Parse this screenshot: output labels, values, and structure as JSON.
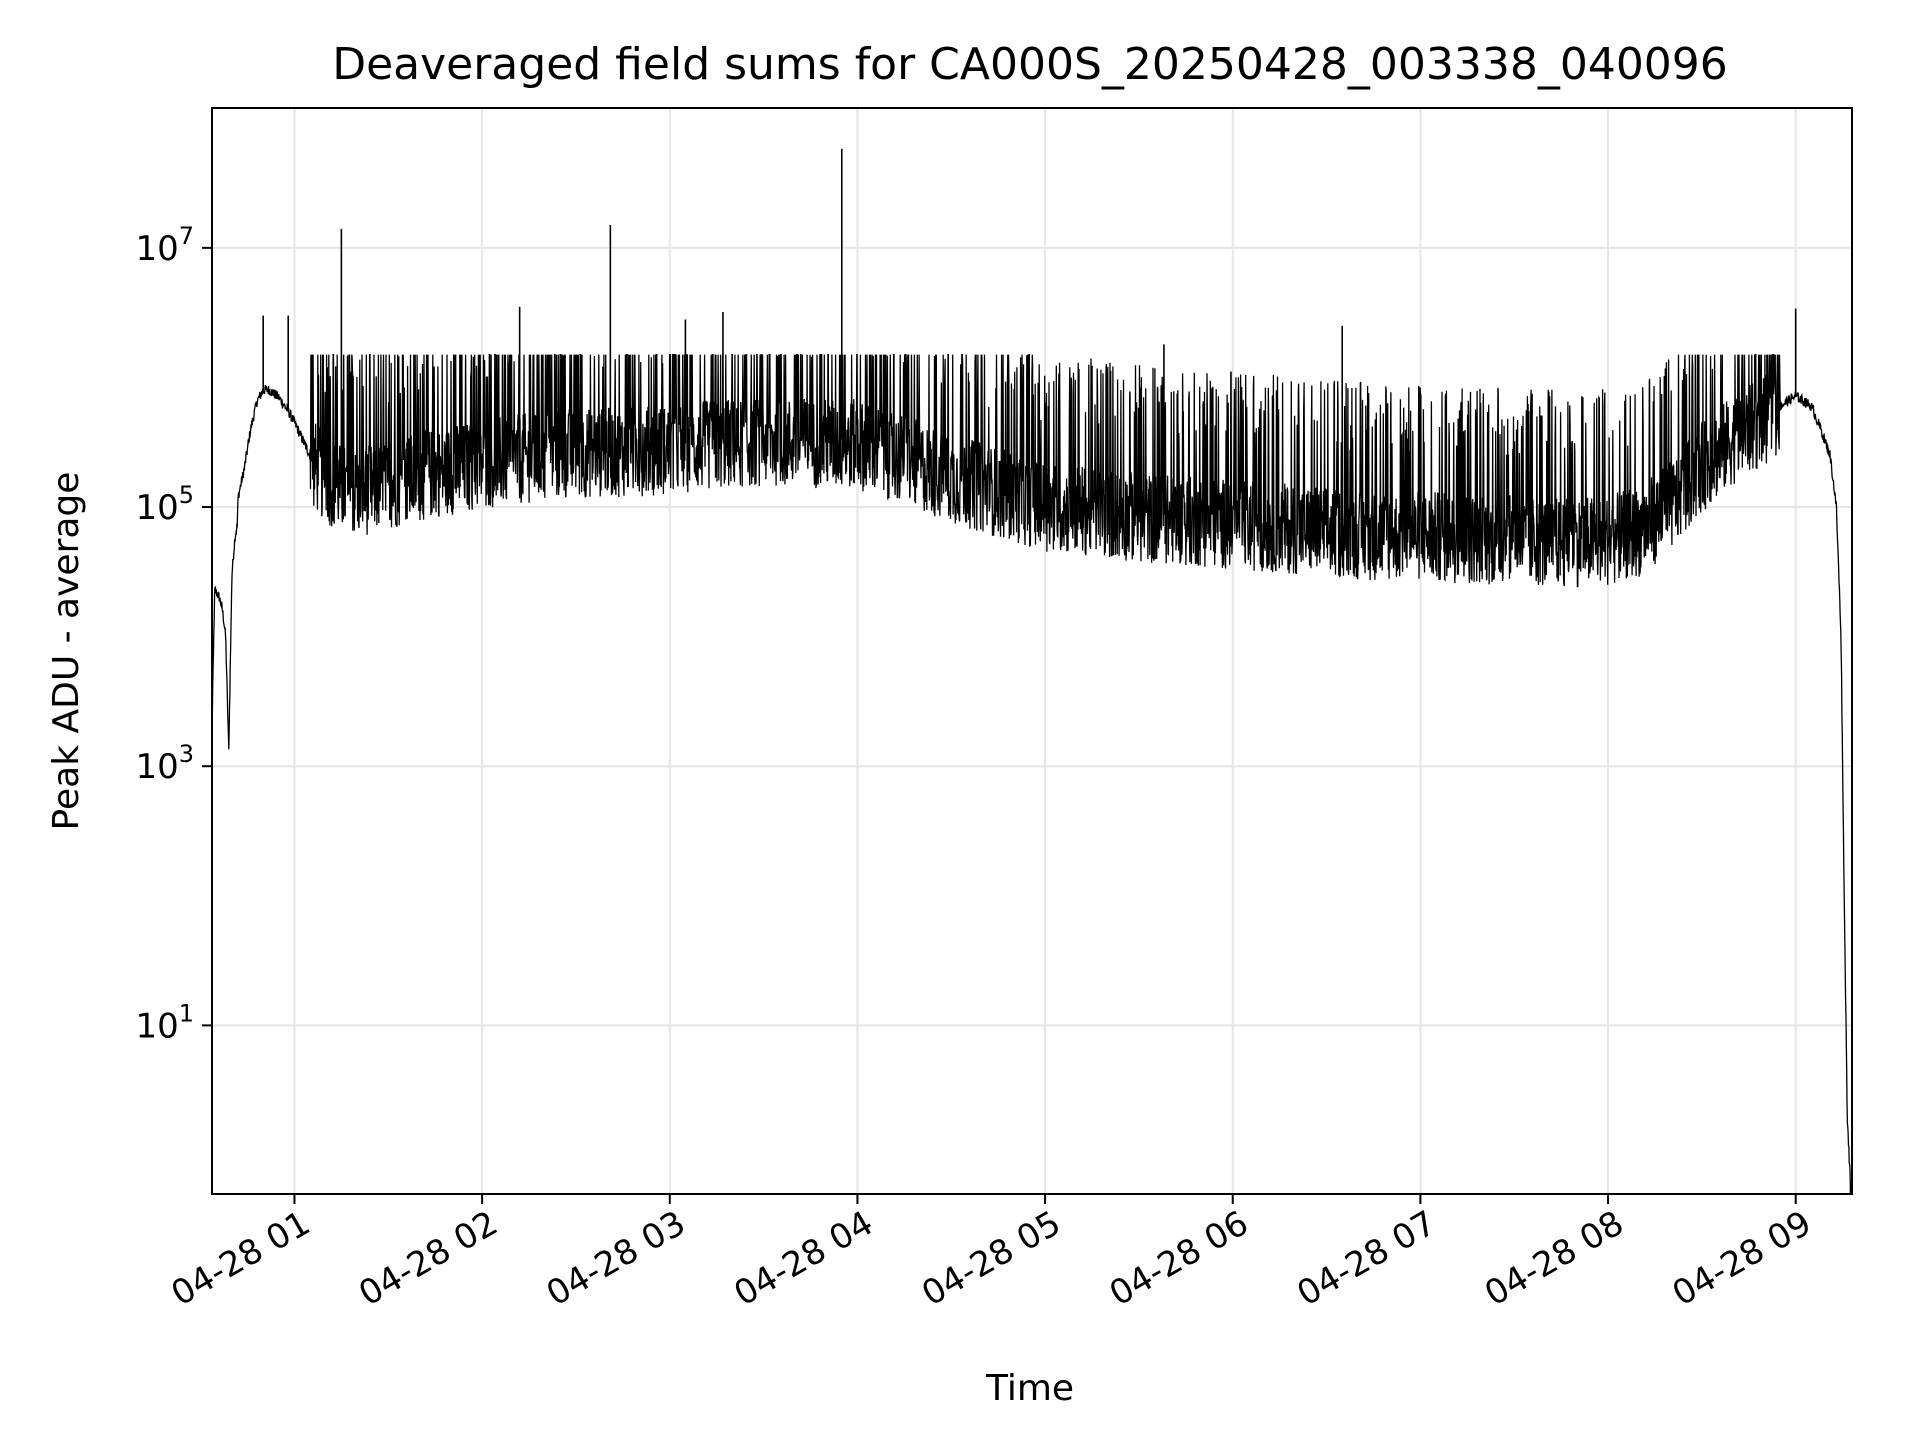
{
  "chart_data": {
    "type": "line",
    "title": "Deaveraged field sums for CA000S_20250428_003338_040096",
    "xlabel": "Time",
    "ylabel": "Peak ADU - average",
    "yscale": "log",
    "ylim": [
      0.5,
      120000000
    ],
    "xlim": [
      "2025-04-28 00:33:38",
      "2025-04-28 09:18:00"
    ],
    "grid": true,
    "line_color": "#000000",
    "grid_color": "#e6e6e6",
    "x_ticks": [
      {
        "value": "2025-04-28 01:00",
        "label": "04-28 01"
      },
      {
        "value": "2025-04-28 02:00",
        "label": "04-28 02"
      },
      {
        "value": "2025-04-28 03:00",
        "label": "04-28 03"
      },
      {
        "value": "2025-04-28 04:00",
        "label": "04-28 04"
      },
      {
        "value": "2025-04-28 05:00",
        "label": "04-28 05"
      },
      {
        "value": "2025-04-28 06:00",
        "label": "04-28 06"
      },
      {
        "value": "2025-04-28 07:00",
        "label": "04-28 07"
      },
      {
        "value": "2025-04-28 08:00",
        "label": "04-28 08"
      },
      {
        "value": "2025-04-28 09:00",
        "label": "04-28 09"
      }
    ],
    "y_ticks": [
      {
        "value": 10,
        "base": "10",
        "exp": "1"
      },
      {
        "value": 1000,
        "base": "10",
        "exp": "3"
      },
      {
        "value": 100000,
        "base": "10",
        "exp": "5"
      },
      {
        "value": 10000000,
        "base": "10",
        "exp": "7"
      }
    ],
    "series": [
      {
        "x": [
          "00:33:38",
          "00:34:30",
          "00:36:00",
          "00:37:00",
          "00:38:00",
          "00:39:00",
          "00:40:00",
          "00:41:00",
          "00:41:40",
          "00:42:00",
          "00:44:00",
          "00:46:00",
          "00:48:00",
          "00:50:00",
          "00:52:00",
          "00:55:00",
          "00:58:00",
          "01:00:00",
          "01:05:00",
          "01:10:00",
          "01:15:00",
          "01:20:00",
          "01:30:00",
          "01:45:00",
          "02:00:00",
          "02:15:00",
          "02:30:00",
          "02:45:00",
          "03:00:00",
          "03:15:00",
          "03:30:00",
          "03:45:00",
          "04:00:00",
          "04:15:00",
          "04:30:00",
          "04:45:00",
          "05:00:00",
          "05:15:00",
          "05:30:00",
          "05:45:00",
          "06:00:00",
          "06:15:00",
          "06:30:00",
          "06:45:00",
          "07:00:00",
          "07:15:00",
          "07:30:00",
          "07:45:00",
          "08:00:00",
          "08:10:00",
          "08:20:00",
          "08:30:00",
          "08:40:00",
          "08:50:00",
          "09:00:00",
          "09:05:00",
          "09:08:00",
          "09:11:00",
          "09:13:00",
          "09:14:30",
          "09:15:30",
          "09:16:30",
          "09:17:30"
        ],
        "y": [
          2000,
          23000,
          20000,
          16000,
          10000,
          1300,
          30000,
          60000,
          70000,
          120000,
          200000,
          400000,
          650000,
          800000,
          800000,
          700000,
          550000,
          450000,
          250000,
          180000,
          150000,
          140000,
          160000,
          200000,
          230000,
          260000,
          280000,
          290000,
          300000,
          330000,
          350000,
          340000,
          330000,
          250000,
          180000,
          140000,
          110000,
          100000,
          90000,
          85000,
          80000,
          75000,
          70000,
          65000,
          65000,
          62000,
          60000,
          58000,
          60000,
          70000,
          110000,
          220000,
          360000,
          500000,
          720000,
          600000,
          400000,
          250000,
          100000,
          10000,
          100,
          2,
          0.6
        ]
      }
    ],
    "spikes": [
      {
        "x": "00:50:00",
        "y": 3000000
      },
      {
        "x": "00:58:00",
        "y": 3000000
      },
      {
        "x": "01:15:00",
        "y": 14000000
      },
      {
        "x": "02:12:00",
        "y": 3500000
      },
      {
        "x": "02:41:00",
        "y": 15000000
      },
      {
        "x": "03:05:00",
        "y": 2800000
      },
      {
        "x": "03:17:00",
        "y": 3200000
      },
      {
        "x": "03:55:00",
        "y": 58000000
      },
      {
        "x": "05:38:00",
        "y": 1800000
      },
      {
        "x": "06:35:00",
        "y": 2500000
      },
      {
        "x": "09:00:00",
        "y": 3400000
      }
    ]
  }
}
